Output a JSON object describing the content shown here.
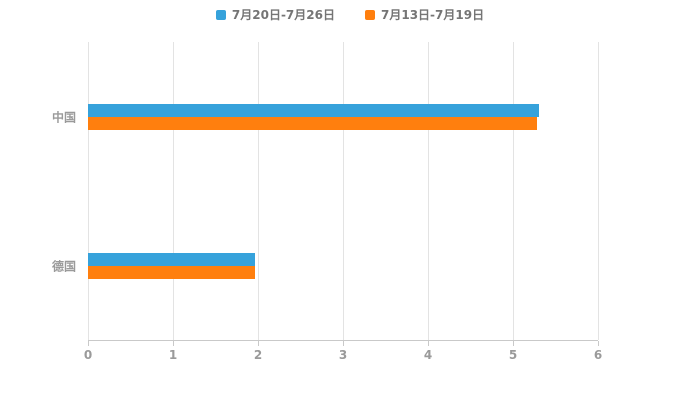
{
  "chart_data": {
    "type": "bar",
    "orientation": "horizontal",
    "title": "",
    "categories": [
      "中国",
      "德国"
    ],
    "series": [
      {
        "name": "7月20日-7月26日",
        "color": "#36A2DB",
        "values": [
          5.3,
          1.97
        ]
      },
      {
        "name": "7月13日-7月19日",
        "color": "#FF7F0E",
        "values": [
          5.28,
          1.97
        ]
      }
    ],
    "xlim": [
      0,
      6
    ],
    "xticks": [
      0,
      1,
      2,
      3,
      4,
      5,
      6
    ],
    "grid": true,
    "legend_position": "top",
    "colors": {
      "gridline": "#e3e3e3",
      "axis_line": "#c9c9c9",
      "tick_label": "#9a9a9a",
      "legend_text": "#757575",
      "background": "#ffffff"
    }
  }
}
